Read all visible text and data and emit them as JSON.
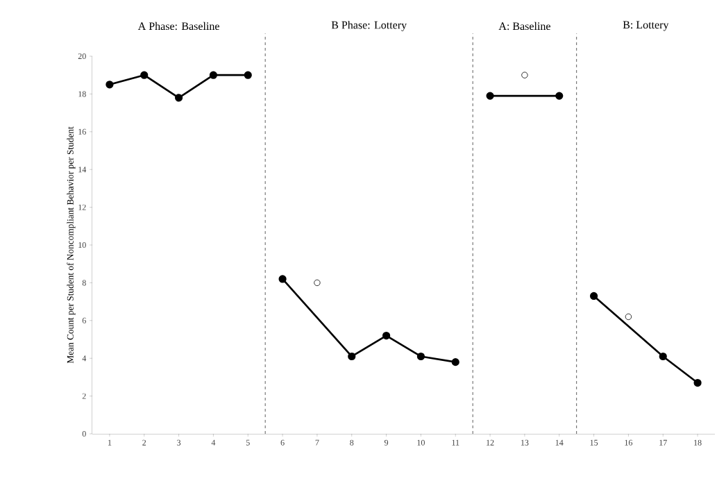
{
  "chart_data": {
    "type": "line",
    "ylabel": "Mean Count per Student of Noncompliant Behavior per Student",
    "marker": "circle",
    "xlim": [
      0.5,
      18.5
    ],
    "xticks": [
      1,
      2,
      3,
      4,
      5,
      6,
      7,
      8,
      9,
      10,
      11,
      12,
      13,
      14,
      15,
      16,
      17,
      18
    ],
    "ylim": [
      0,
      20
    ],
    "yticks": [
      0,
      2,
      4,
      6,
      8,
      10,
      12,
      14,
      16,
      18,
      20
    ],
    "series": [
      {
        "color": "#000000",
        "x": [
          1,
          2,
          3,
          4,
          5
        ],
        "values": [
          18.5,
          19,
          17.8,
          19,
          19
        ]
      },
      {
        "color": "#000000",
        "x": [
          6,
          8,
          9,
          10,
          11
        ],
        "values": [
          8.2,
          4.1,
          5.2,
          4.1,
          3.8
        ]
      },
      {
        "color": "#000000",
        "x": [
          12,
          14
        ],
        "values": [
          17.9,
          17.9
        ]
      },
      {
        "color": "#000000",
        "x": [
          15,
          17,
          18
        ],
        "values": [
          7.3,
          4.1,
          2.7
        ]
      },
      {
        "type": "scatter",
        "color": "#000000",
        "x": [
          7,
          13,
          16
        ],
        "values": [
          8,
          19,
          6.2
        ]
      }
    ],
    "ref_lines": [
      {
        "axis": "x",
        "value": 5.5,
        "line_style": "dashed"
      },
      {
        "axis": "x",
        "value": 11.5,
        "line_style": "dashed"
      },
      {
        "axis": "x",
        "value": 14.5,
        "line_style": "dashed"
      }
    ],
    "bands": [
      {
        "axis": "x",
        "from": 0.5,
        "to": 5.5,
        "label": "A Phase: Baseline",
        "color": "#ffffff"
      },
      {
        "axis": "x",
        "from": 5.5,
        "to": 11.5,
        "label": "B Phase: Lottery",
        "color": "#ffffff"
      },
      {
        "axis": "x",
        "from": 11.5,
        "to": 14.5,
        "label": "A: Baseline",
        "color": "#ffffff"
      },
      {
        "axis": "x",
        "from": 14.5,
        "to": 18.5,
        "label": "B: Lottery",
        "color": "#ffffff"
      }
    ]
  }
}
